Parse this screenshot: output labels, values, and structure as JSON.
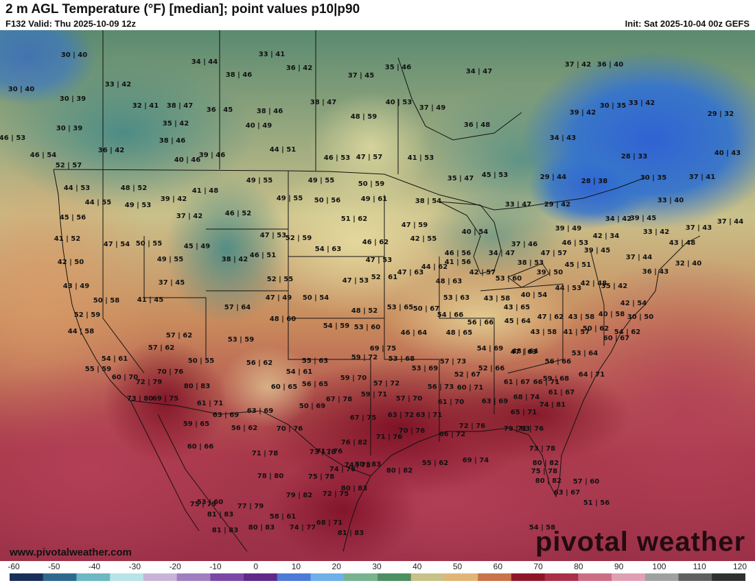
{
  "header": {
    "title": "2 m AGL Temperature (°F) [median]; point values p10|p90",
    "valid": "F132 Valid: Thu 2025-10-09 12z",
    "init": "Init: Sat 2025-10-04 00z GEFS"
  },
  "watermark": {
    "brand": "pivotal weather",
    "url": "www.pivotalweather.com"
  },
  "colorbar": {
    "labels": [
      "-60",
      "-50",
      "-40",
      "-30",
      "-20",
      "-10",
      "0",
      "10",
      "20",
      "30",
      "40",
      "50",
      "60",
      "70",
      "80",
      "90",
      "100",
      "110",
      "120"
    ]
  },
  "colors": {
    "cold": "#2f64dc",
    "cool": "#3f8e8a",
    "mild": "#e9dea0",
    "warm": "#c7744f",
    "hot": "#7e0e22"
  },
  "map": {
    "points": [
      "30|40",
      "34|44",
      "33|41",
      "36|42",
      "37|45",
      "35|46",
      "34|47",
      "37|42",
      "36|40",
      "30|40",
      "33|42",
      "38|46",
      "38|47",
      "40|53",
      "37|49",
      "39|42",
      "30|39",
      "30|35",
      "33|42",
      "32|41",
      "38|47",
      "36|45",
      "38|46",
      "48|59",
      "36|48",
      "29|32",
      "30|39",
      "35|42",
      "40|49",
      "46|53",
      "38|46",
      "44|51",
      "34|43",
      "46|54",
      "36|42",
      "40|46",
      "39|46",
      "46|53",
      "47|57",
      "41|53",
      "28|33",
      "40|43",
      "52|57",
      "29|44",
      "28|38",
      "30|35",
      "37|41",
      "44|53",
      "48|52",
      "49|55",
      "49|55",
      "50|59",
      "35|47",
      "45|53",
      "33|40",
      "41|48",
      "44|55",
      "39|42",
      "49|53",
      "49|55",
      "50|56",
      "49|61",
      "38|54",
      "33|47",
      "29|42",
      "37|42",
      "46|52",
      "51|62",
      "34|42",
      "39|45",
      "37|43",
      "37|44",
      "45|56",
      "47|53",
      "52|59",
      "47|59",
      "39|49",
      "42|34",
      "33|42",
      "41|52",
      "47|54",
      "50|55",
      "45|49",
      "46|51",
      "42|55",
      "40|54",
      "37|46",
      "46|53",
      "43|48",
      "42|50",
      "49|55",
      "38|42",
      "54|63",
      "46|62",
      "46|56",
      "34|47",
      "39|45",
      "37|44",
      "47|53",
      "47|63",
      "44|62",
      "41|56",
      "38|53",
      "47|57",
      "37|45",
      "52|55",
      "47|53",
      "52|61",
      "48|63",
      "42|57",
      "53|60",
      "39|50",
      "45|51",
      "32|40",
      "36|43",
      "43|49",
      "50|58",
      "41|45",
      "47|49",
      "50|54",
      "53|63",
      "43|58",
      "40|54",
      "44|53",
      "42|48",
      "35|42",
      "52|59",
      "57|64",
      "48|52",
      "53|65",
      "50|67",
      "43|65",
      "42|54",
      "44|58",
      "48|60",
      "54|59",
      "53|60",
      "54|66",
      "56|66",
      "45|64",
      "47|62",
      "43|58",
      "40|58",
      "30|50",
      "54|62",
      "57|62",
      "57|62",
      "53|59",
      "46|64",
      "48|65",
      "41|57",
      "50|62",
      "60|67",
      "69|75",
      "54|69",
      "48|64",
      "43|58",
      "56|66",
      "53|64",
      "54|61",
      "50|55",
      "56|62",
      "55|63",
      "59|72",
      "53|68",
      "57|73",
      "47|63",
      "55|59",
      "70|76",
      "54|61",
      "53|69",
      "52|67",
      "52|66",
      "59|68",
      "64|71",
      "60|70",
      "72|79",
      "80|83",
      "60|65",
      "56|65",
      "59|70",
      "57|72",
      "56|73",
      "60|71",
      "61|67",
      "66|71",
      "61|67",
      "73|80",
      "69|75",
      "61|71",
      "67|78",
      "59|71",
      "57|70",
      "61|70",
      "63|69",
      "68|74",
      "63|69",
      "63|69",
      "50|69",
      "67|75",
      "63|72",
      "63|71",
      "65|71",
      "74|81",
      "59|65",
      "56|62",
      "70|76",
      "70|76",
      "66|72",
      "72|76",
      "79|83",
      "71|76",
      "60|66",
      "71|76",
      "71|78",
      "71|76",
      "76|82",
      "73|78",
      "74|78",
      "73|78",
      "74|78",
      "80|83",
      "80|82",
      "80|82",
      "55|62",
      "69|74",
      "78|80",
      "75|78",
      "75|78",
      "80|83",
      "80|82",
      "63|67",
      "57|60",
      "79|82",
      "72|75",
      "75|79",
      "77|79",
      "53|60",
      "81|83",
      "58|61",
      "81|83",
      "80|83",
      "51|56",
      "68|71",
      "74|77",
      "81|83",
      "54|58"
    ]
  }
}
